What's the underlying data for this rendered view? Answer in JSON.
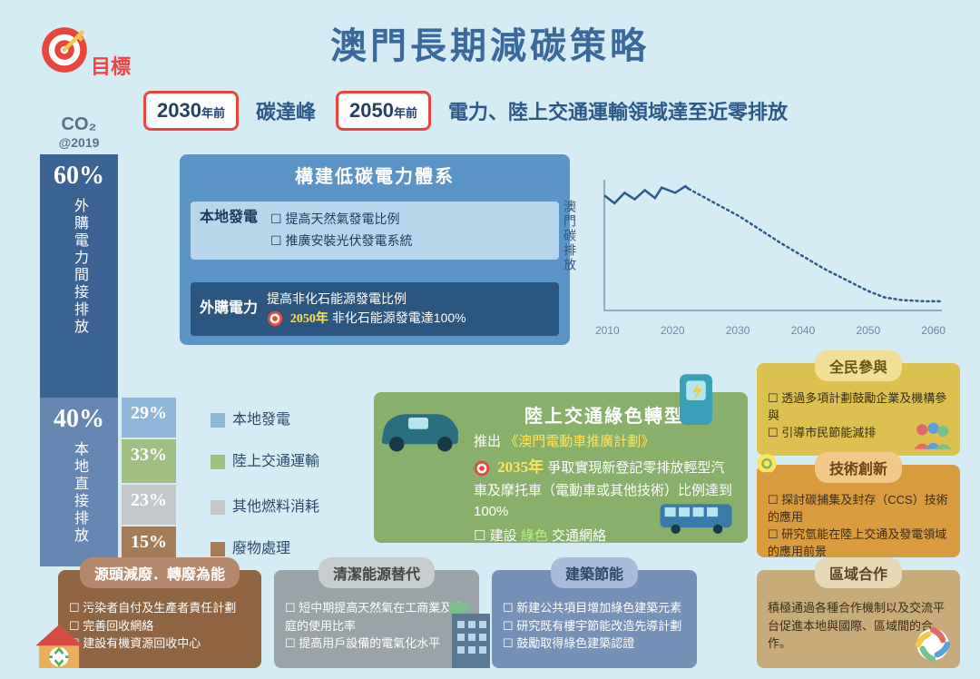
{
  "title": "澳門長期減碳策略",
  "targetLabel": "目標",
  "milestones": {
    "m1": {
      "year": "2030",
      "suffix": "年前",
      "text": "碳達峰"
    },
    "m2": {
      "year": "2050",
      "suffix": "年前",
      "text": "電力、陸上交通運輸領域達至近零排放"
    }
  },
  "co2": {
    "head": "CO₂",
    "sub": "@2019",
    "seg1": {
      "pct": "60%",
      "label": "外購電力間接排放"
    },
    "seg2": {
      "pct": "40%",
      "label": "本地直接排放"
    }
  },
  "breakdown": {
    "items": [
      {
        "pct": "29%",
        "label": "本地發電",
        "color": "#8eb7d9"
      },
      {
        "pct": "33%",
        "label": "陸上交通運輸",
        "color": "#9fc082"
      },
      {
        "pct": "23%",
        "label": "其他燃料消耗",
        "color": "#c3c7c9"
      },
      {
        "pct": "15%",
        "label": "廢物處理",
        "color": "#a57c56"
      }
    ]
  },
  "elec": {
    "title": "構建低碳電力體系",
    "local": {
      "head": "本地發電",
      "b1": "提高天然氣發電比例",
      "b2": "推廣安裝光伏發電系統"
    },
    "ext": {
      "head": "外購電力",
      "year": "2050年",
      "l1": "提高非化石能源發電比例",
      "l2": "非化石能源發電達100%"
    }
  },
  "chart": {
    "ylabel": "澳門碳排放",
    "xticks": [
      "2010",
      "2020",
      "2030",
      "2040",
      "2050",
      "2060"
    ],
    "points": [
      [
        0,
        0.88
      ],
      [
        0.03,
        0.82
      ],
      [
        0.06,
        0.9
      ],
      [
        0.09,
        0.85
      ],
      [
        0.12,
        0.92
      ],
      [
        0.15,
        0.86
      ],
      [
        0.17,
        0.94
      ],
      [
        0.21,
        0.9
      ],
      [
        0.24,
        0.95
      ],
      [
        0.25,
        0.93
      ],
      [
        0.3,
        0.86
      ],
      [
        0.4,
        0.72
      ],
      [
        0.52,
        0.52
      ],
      [
        0.65,
        0.32
      ],
      [
        0.78,
        0.15
      ],
      [
        0.83,
        0.1
      ],
      [
        0.88,
        0.08
      ],
      [
        0.95,
        0.07
      ],
      [
        1.0,
        0.07
      ]
    ],
    "solid_until_idx": 9,
    "line_color": "#2b5a8a",
    "bg": "#d6ecf5"
  },
  "transport": {
    "title": "陸上交通綠色轉型",
    "l1a": "推出",
    "l1b": "《澳門電動車推廣計劃》",
    "year": "2035年",
    "l2": "爭取實現新登記零排放輕型汽車及摩托車（電動車或其他技術）比例達到100%",
    "l3a": "建設",
    "l3b": "綠色",
    "l3c": "交通網絡"
  },
  "boxes": {
    "waste": {
      "title": "源頭減廢．轉廢為能",
      "b1": "污染者自付及生產者責任計劃",
      "b2": "完善回收網絡",
      "b3": "建設有機資源回收中心"
    },
    "clean": {
      "title": "清潔能源替代",
      "b1": "短中期提高天然氣在工商業及家庭的使用比率",
      "b2": "提高用戶設備的電氣化水平"
    },
    "build": {
      "title": "建築節能",
      "b1": "新建公共項目增加綠色建築元素",
      "b2": "研究既有樓宇節能改造先導計劃",
      "b3": "鼓勵取得綠色建築認證"
    },
    "public": {
      "title": "全民參與",
      "b1": "透過多項計劃鼓勵企業及機構參與",
      "b2": "引導市民節能減排"
    },
    "tech": {
      "title": "技術創新",
      "b1": "探討碳捕集及封存（CCS）技術的應用",
      "b2": "研究氫能在陸上交通及發電領域的應用前景"
    },
    "region": {
      "title": "區域合作",
      "body": "積極通過各種合作機制以及交流平台促進本地與國際、區域間的合作。"
    }
  },
  "colors": {
    "accent_red": "#e8463d",
    "accent_yellow": "#f3c948"
  }
}
